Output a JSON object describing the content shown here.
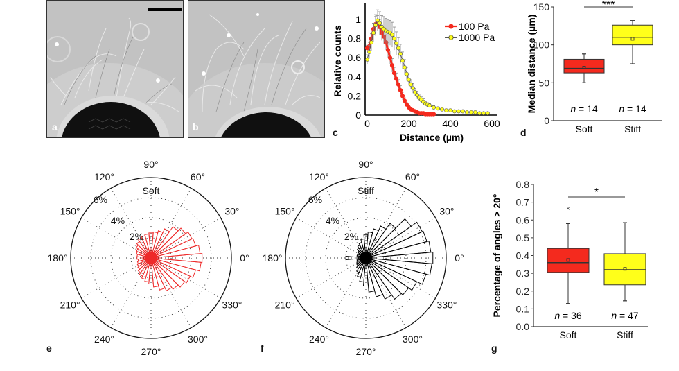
{
  "panels": {
    "a": "a",
    "b": "b",
    "c": "c",
    "d": "d",
    "e": "e",
    "f": "f",
    "g": "g"
  },
  "colors": {
    "soft": "#f42a1e",
    "stiff": "#ffff1a",
    "soft_polar": "#ee2a2a",
    "stiff_polar": "#000000",
    "errorbar": "#8a8a8a"
  },
  "chart_data": [
    {
      "id": "c",
      "type": "line",
      "xlabel": "Distance (µm)",
      "ylabel": "Relative counts",
      "xlim": [
        0,
        620
      ],
      "ylim": [
        0,
        1.1
      ],
      "xticks": [
        0,
        200,
        400,
        600
      ],
      "yticks": [
        0,
        0.2,
        0.4,
        0.6,
        0.8,
        1
      ],
      "ytick_labels": [
        "0",
        "0.2",
        "0.4",
        "0.6",
        "0.8",
        "1"
      ],
      "legend": {
        "placement": "top-right"
      },
      "series": [
        {
          "name": "100 Pa",
          "color": "#f42a1e",
          "x": [
            0,
            10,
            20,
            30,
            40,
            50,
            60,
            70,
            80,
            90,
            100,
            110,
            120,
            130,
            140,
            150,
            160,
            170,
            180,
            190,
            200,
            210,
            220,
            230,
            240,
            250,
            260,
            270,
            280,
            290,
            300,
            310,
            320
          ],
          "y": [
            0.7,
            0.72,
            0.8,
            0.9,
            0.95,
            0.96,
            0.92,
            0.86,
            0.82,
            0.76,
            0.68,
            0.6,
            0.52,
            0.44,
            0.38,
            0.32,
            0.26,
            0.2,
            0.15,
            0.11,
            0.08,
            0.06,
            0.05,
            0.04,
            0.03,
            0.02,
            0.02,
            0.02,
            0.01,
            0.01,
            0.01,
            0.01,
            0.01
          ],
          "err": [
            0.03,
            0.04,
            0.05,
            0.06,
            0.08,
            0.08,
            0.08,
            0.08,
            0.08,
            0.08,
            0.08,
            0.07,
            0.07,
            0.06,
            0.06,
            0.05,
            0.05,
            0.04,
            0.03,
            0.02,
            0.02,
            0.02,
            0.01,
            0.01,
            0.01,
            0.01,
            0.01,
            0.01,
            0,
            0,
            0,
            0,
            0
          ]
        },
        {
          "name": "1000 Pa",
          "color": "#ffff1a",
          "x": [
            0,
            10,
            20,
            30,
            40,
            50,
            60,
            70,
            80,
            90,
            100,
            110,
            120,
            130,
            140,
            150,
            160,
            170,
            180,
            190,
            200,
            210,
            220,
            230,
            240,
            250,
            260,
            270,
            280,
            290,
            300,
            320,
            340,
            360,
            380,
            400,
            420,
            440,
            460,
            480,
            500,
            520,
            540,
            560,
            580
          ],
          "y": [
            0.58,
            0.66,
            0.76,
            0.86,
            0.94,
            0.99,
            0.96,
            0.92,
            0.9,
            0.88,
            0.87,
            0.86,
            0.84,
            0.8,
            0.75,
            0.7,
            0.64,
            0.57,
            0.5,
            0.43,
            0.37,
            0.32,
            0.28,
            0.24,
            0.21,
            0.18,
            0.16,
            0.14,
            0.12,
            0.11,
            0.1,
            0.08,
            0.07,
            0.06,
            0.05,
            0.05,
            0.04,
            0.04,
            0.04,
            0.03,
            0.03,
            0.03,
            0.02,
            0.02,
            0.02
          ],
          "err": [
            0.05,
            0.07,
            0.09,
            0.1,
            0.11,
            0.11,
            0.12,
            0.12,
            0.13,
            0.13,
            0.13,
            0.13,
            0.13,
            0.12,
            0.12,
            0.11,
            0.1,
            0.09,
            0.08,
            0.07,
            0.06,
            0.05,
            0.05,
            0.04,
            0.04,
            0.03,
            0.03,
            0.03,
            0.02,
            0.02,
            0.02,
            0.02,
            0.01,
            0.01,
            0.01,
            0.01,
            0.01,
            0.01,
            0.01,
            0.01,
            0.01,
            0.01,
            0.01,
            0.01,
            0.01
          ]
        }
      ]
    },
    {
      "id": "d",
      "type": "box",
      "ylabel": "Median distance (µm)",
      "ylim": [
        0,
        150
      ],
      "yticks": [
        0,
        50,
        100,
        150
      ],
      "categories": [
        "Soft",
        "Stiff"
      ],
      "significance": "***",
      "boxes": [
        {
          "label": "Soft",
          "n_label": "n = 14",
          "n": 14,
          "whisker_low": 50,
          "q1": 63,
          "median": 69,
          "q3": 81,
          "whisker_high": 88,
          "mean": 70,
          "outliers": [],
          "color": "#f42a1e"
        },
        {
          "label": "Stiff",
          "n_label": "n = 14",
          "n": 14,
          "whisker_low": 75,
          "q1": 100,
          "median": 110,
          "q3": 126,
          "whisker_high": 132,
          "mean": 108,
          "outliers": [],
          "color": "#ffff1a"
        }
      ]
    },
    {
      "id": "e",
      "type": "polar-histogram",
      "title": "Soft",
      "angle_labels": [
        "0°",
        "30°",
        "60°",
        "90°",
        "120°",
        "150°",
        "180°",
        "210°",
        "240°",
        "270°",
        "300°",
        "330°"
      ],
      "radial_labels": [
        "2%",
        "4%",
        "6%"
      ],
      "rmax": 8,
      "bin_width_deg": 10,
      "color": "#ee2a2a",
      "bins_deg": [
        0,
        10,
        20,
        30,
        40,
        50,
        60,
        70,
        80,
        90,
        100,
        110,
        120,
        130,
        140,
        150,
        160,
        170,
        180,
        190,
        200,
        210,
        220,
        230,
        240,
        250,
        260,
        270,
        280,
        290,
        300,
        310,
        320,
        330,
        340,
        350
      ],
      "values_pct": [
        5.1,
        4.9,
        4.6,
        4.5,
        4.2,
        3.8,
        3.2,
        2.8,
        2.6,
        2.5,
        2.4,
        2.3,
        2.2,
        2.0,
        1.8,
        1.6,
        1.5,
        1.4,
        1.4,
        1.3,
        1.4,
        1.5,
        1.6,
        1.8,
        2.0,
        2.2,
        2.4,
        2.6,
        2.9,
        3.3,
        3.6,
        3.8,
        4.1,
        4.3,
        4.6,
        5.0
      ]
    },
    {
      "id": "f",
      "type": "polar-histogram",
      "title": "Stiff",
      "angle_labels": [
        "0°",
        "30°",
        "60°",
        "90°",
        "120°",
        "150°",
        "180°",
        "210°",
        "240°",
        "270°",
        "300°",
        "330°"
      ],
      "radial_labels": [
        "2%",
        "4%",
        "6%"
      ],
      "rmax": 8,
      "bin_width_deg": 10,
      "color": "#000000",
      "bins_deg": [
        0,
        10,
        20,
        30,
        40,
        50,
        60,
        70,
        80,
        90,
        100,
        110,
        120,
        130,
        140,
        150,
        160,
        170,
        180,
        190,
        200,
        210,
        220,
        230,
        240,
        250,
        260,
        270,
        280,
        290,
        300,
        310,
        320,
        330,
        340,
        350
      ],
      "values_pct": [
        6.7,
        6.5,
        6.3,
        6.2,
        5.5,
        4.2,
        3.5,
        3.0,
        2.6,
        2.3,
        1.9,
        1.6,
        1.4,
        1.2,
        1.0,
        0.9,
        0.9,
        0.9,
        2.0,
        0.9,
        0.9,
        1.0,
        1.1,
        1.3,
        1.6,
        2.0,
        2.4,
        2.8,
        3.4,
        4.0,
        4.5,
        5.0,
        5.2,
        5.6,
        6.2,
        6.6
      ]
    },
    {
      "id": "g",
      "type": "box",
      "ylabel": "Percentage of angles > 20°",
      "ylim": [
        0,
        0.8
      ],
      "yticks": [
        0,
        0.1,
        0.2,
        0.3,
        0.4,
        0.5,
        0.6,
        0.7,
        0.8
      ],
      "ytick_labels": [
        "0.0",
        "0.1",
        "0.2",
        "0.3",
        "0.4",
        "0.5",
        "0.6",
        "0.7",
        "0.8"
      ],
      "categories": [
        "Soft",
        "Stiff"
      ],
      "significance": "*",
      "boxes": [
        {
          "label": "Soft",
          "n_label": "n = 36",
          "n": 36,
          "whisker_low": 0.13,
          "q1": 0.305,
          "median": 0.36,
          "q3": 0.44,
          "whisker_high": 0.58,
          "mean": 0.375,
          "outliers": [
            0.665
          ],
          "color": "#f42a1e"
        },
        {
          "label": "Stiff",
          "n_label": "n = 47",
          "n": 47,
          "whisker_low": 0.145,
          "q1": 0.235,
          "median": 0.32,
          "q3": 0.41,
          "whisker_high": 0.585,
          "mean": 0.325,
          "outliers": [],
          "color": "#ffff1a"
        }
      ]
    }
  ]
}
